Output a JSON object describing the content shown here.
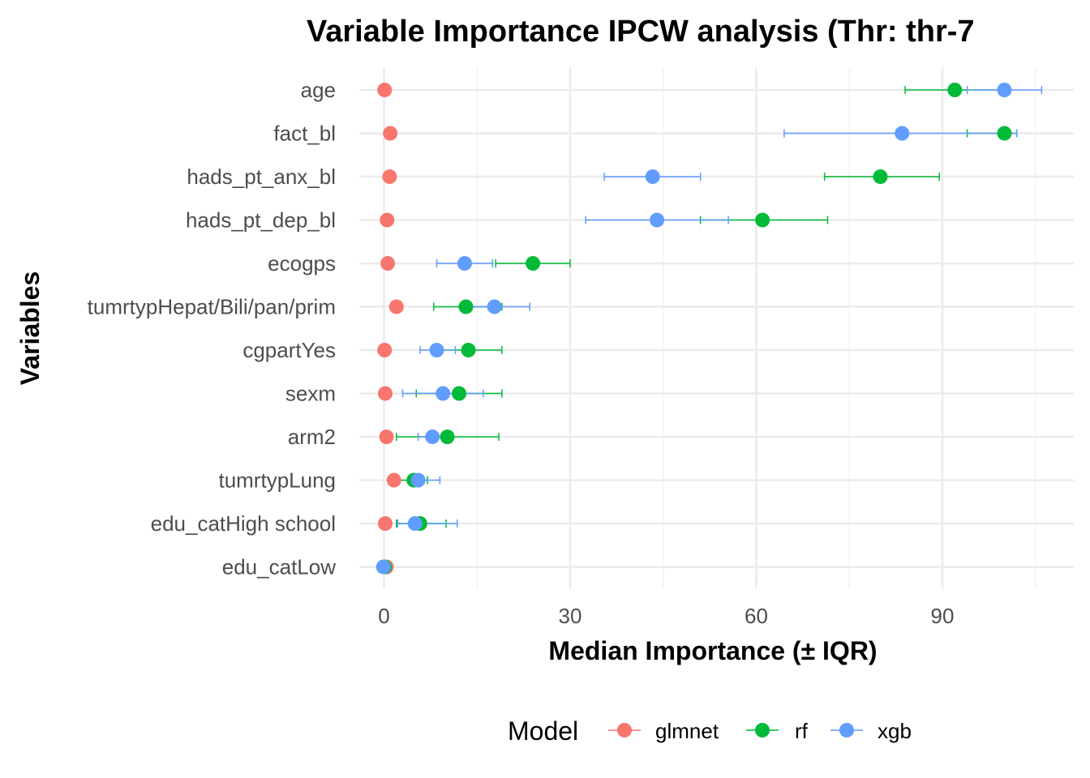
{
  "chart_data": {
    "type": "scatter",
    "title": "Variable Importance IPCW analysis (Thr: thr-7",
    "xlabel": "Median Importance (± IQR)",
    "ylabel": "Variables",
    "xlim": [
      -4,
      112
    ],
    "x_ticks": [
      0,
      30,
      60,
      90
    ],
    "grid": true,
    "legend": {
      "title": "Model",
      "position": "bottom"
    },
    "categories": [
      "age",
      "fact_bl",
      "hads_pt_anx_bl",
      "hads_pt_dep_bl",
      "ecogps",
      "tumrtypHepat/Bili/pan/prim",
      "cgpartYes",
      "sexm",
      "arm2",
      "tumrtypLung",
      "edu_catHigh school",
      "edu_catLow"
    ],
    "series": [
      {
        "name": "glmnet",
        "color": "#F8766D",
        "values": [
          0.1,
          1.0,
          0.9,
          0.5,
          0.6,
          2.0,
          0.1,
          0.2,
          0.4,
          1.6,
          0.2,
          0.4
        ],
        "lower": [
          0.1,
          1.0,
          0.9,
          0.5,
          0.6,
          2.0,
          0.1,
          0.2,
          0.4,
          1.6,
          0.2,
          0.4
        ],
        "upper": [
          0.1,
          1.0,
          0.9,
          0.5,
          0.6,
          2.0,
          0.1,
          0.2,
          0.4,
          1.6,
          0.2,
          0.4
        ]
      },
      {
        "name": "rf",
        "color": "#00BA38",
        "values": [
          92,
          100,
          80,
          61,
          24,
          13.2,
          13.6,
          12.1,
          10.2,
          4.8,
          5.8,
          0.1
        ],
        "lower": [
          84,
          94,
          71,
          51,
          18,
          8,
          8,
          5.2,
          2,
          2,
          2,
          0.1
        ],
        "upper": [
          100,
          102,
          89.5,
          71.5,
          30,
          19,
          19,
          19,
          18.5,
          7,
          10,
          0.1
        ]
      },
      {
        "name": "xgb",
        "color": "#619CFF",
        "values": [
          100,
          83.5,
          43.3,
          44,
          13,
          17.8,
          8.5,
          9.5,
          7.8,
          5.5,
          5.0,
          -0.1
        ],
        "lower": [
          94,
          64.5,
          35.5,
          32.5,
          8.5,
          14,
          5.8,
          3,
          5.5,
          4,
          2.2,
          -0.1
        ],
        "upper": [
          106,
          102,
          51,
          55.5,
          17.5,
          23.5,
          11.5,
          16,
          10.5,
          9,
          11.8,
          -0.1
        ]
      }
    ]
  }
}
